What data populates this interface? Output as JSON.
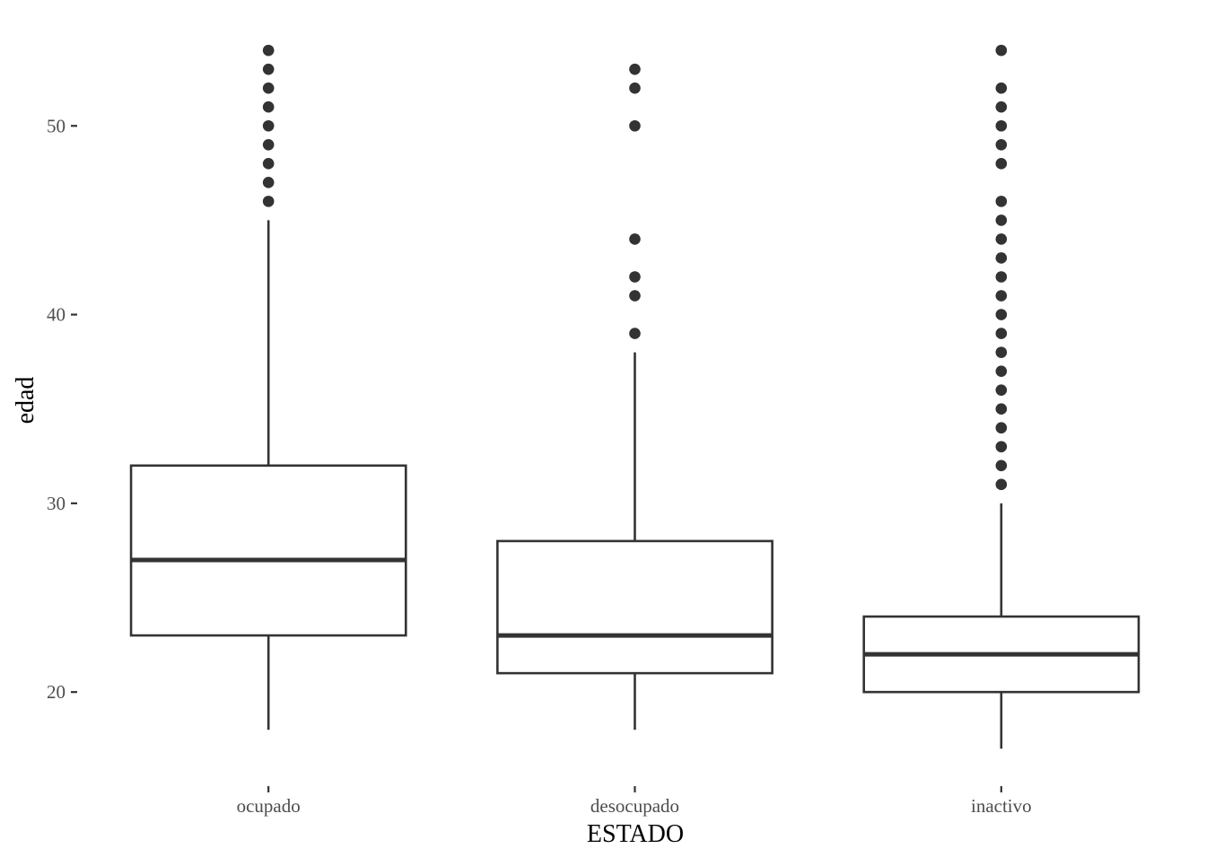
{
  "chart_data": {
    "type": "boxplot",
    "title": "",
    "xlabel": "ESTADO",
    "ylabel": "edad",
    "ylim": [
      15.3,
      55.1
    ],
    "grid": false,
    "legend": "none",
    "yticks": [
      20,
      30,
      40,
      50
    ],
    "categories": [
      "ocupado",
      "desocupado",
      "inactivo"
    ],
    "boxes": [
      {
        "category": "ocupado",
        "whisker_low": 18,
        "q1": 23,
        "median": 27,
        "q3": 32,
        "whisker_high": 45,
        "outliers": [
          46,
          47,
          48,
          49,
          50,
          51,
          52,
          53,
          54
        ]
      },
      {
        "category": "desocupado",
        "whisker_low": 18,
        "q1": 21,
        "median": 23,
        "q3": 28,
        "whisker_high": 38,
        "outliers": [
          39,
          41,
          42,
          44,
          50,
          52,
          53
        ]
      },
      {
        "category": "inactivo",
        "whisker_low": 17,
        "q1": 20,
        "median": 22,
        "q3": 24,
        "whisker_high": 30,
        "outliers": [
          31,
          32,
          33,
          34,
          35,
          36,
          37,
          38,
          39,
          40,
          41,
          42,
          43,
          44,
          45,
          46,
          48,
          49,
          50,
          51,
          52,
          54
        ]
      }
    ],
    "colors": {
      "box_stroke": "#333333",
      "outlier_fill": "#333333",
      "tick_label": "#4d4d4d",
      "axis_title": "#000000",
      "background": "#ffffff"
    }
  }
}
